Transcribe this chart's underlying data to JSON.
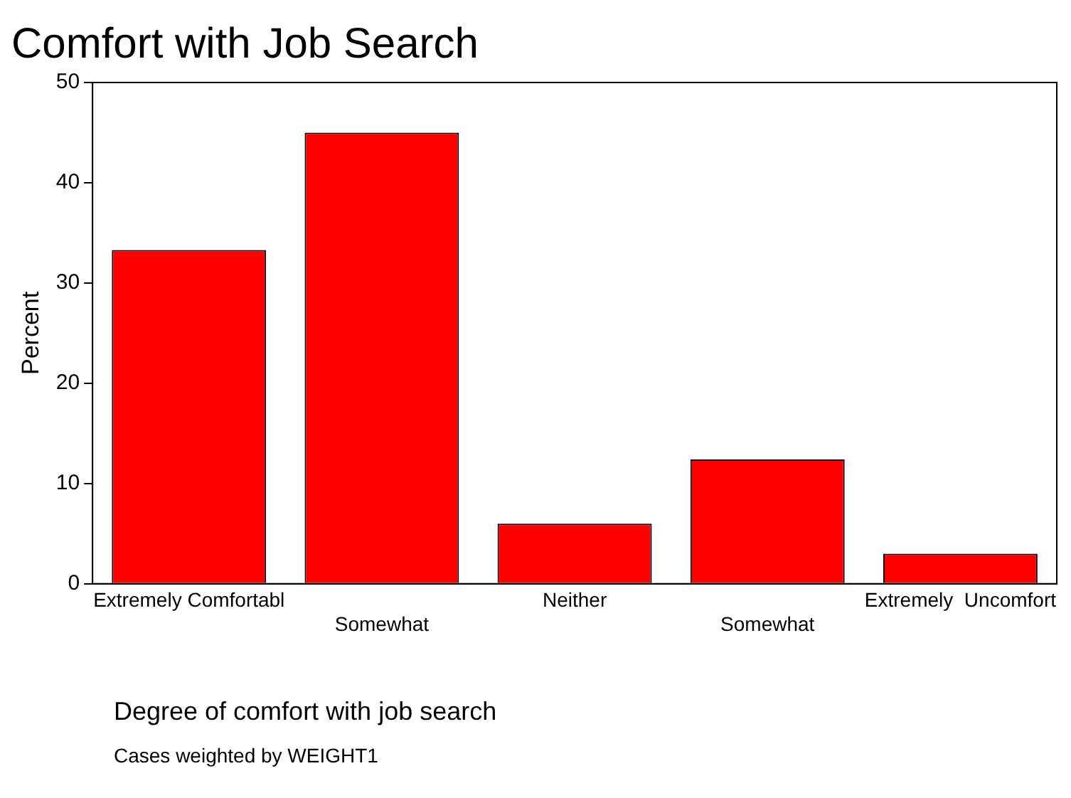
{
  "chart_data": {
    "type": "bar",
    "title": "Comfort with Job Search",
    "xlabel": "Degree of comfort with job search",
    "ylabel": "Percent",
    "categories": [
      "Extremely Comfortabl",
      "Somewhat",
      "Neither",
      "Somewhat",
      "Extremely  Uncomfort"
    ],
    "values": [
      33.3,
      45.0,
      6.0,
      12.4,
      3.0
    ],
    "color": "#ff0000",
    "ylim": [
      0,
      50
    ],
    "yticks": [
      0,
      10,
      20,
      30,
      40,
      50
    ],
    "grid": false,
    "legend": false,
    "annotations": [
      "Cases weighted by WEIGHT1"
    ]
  }
}
